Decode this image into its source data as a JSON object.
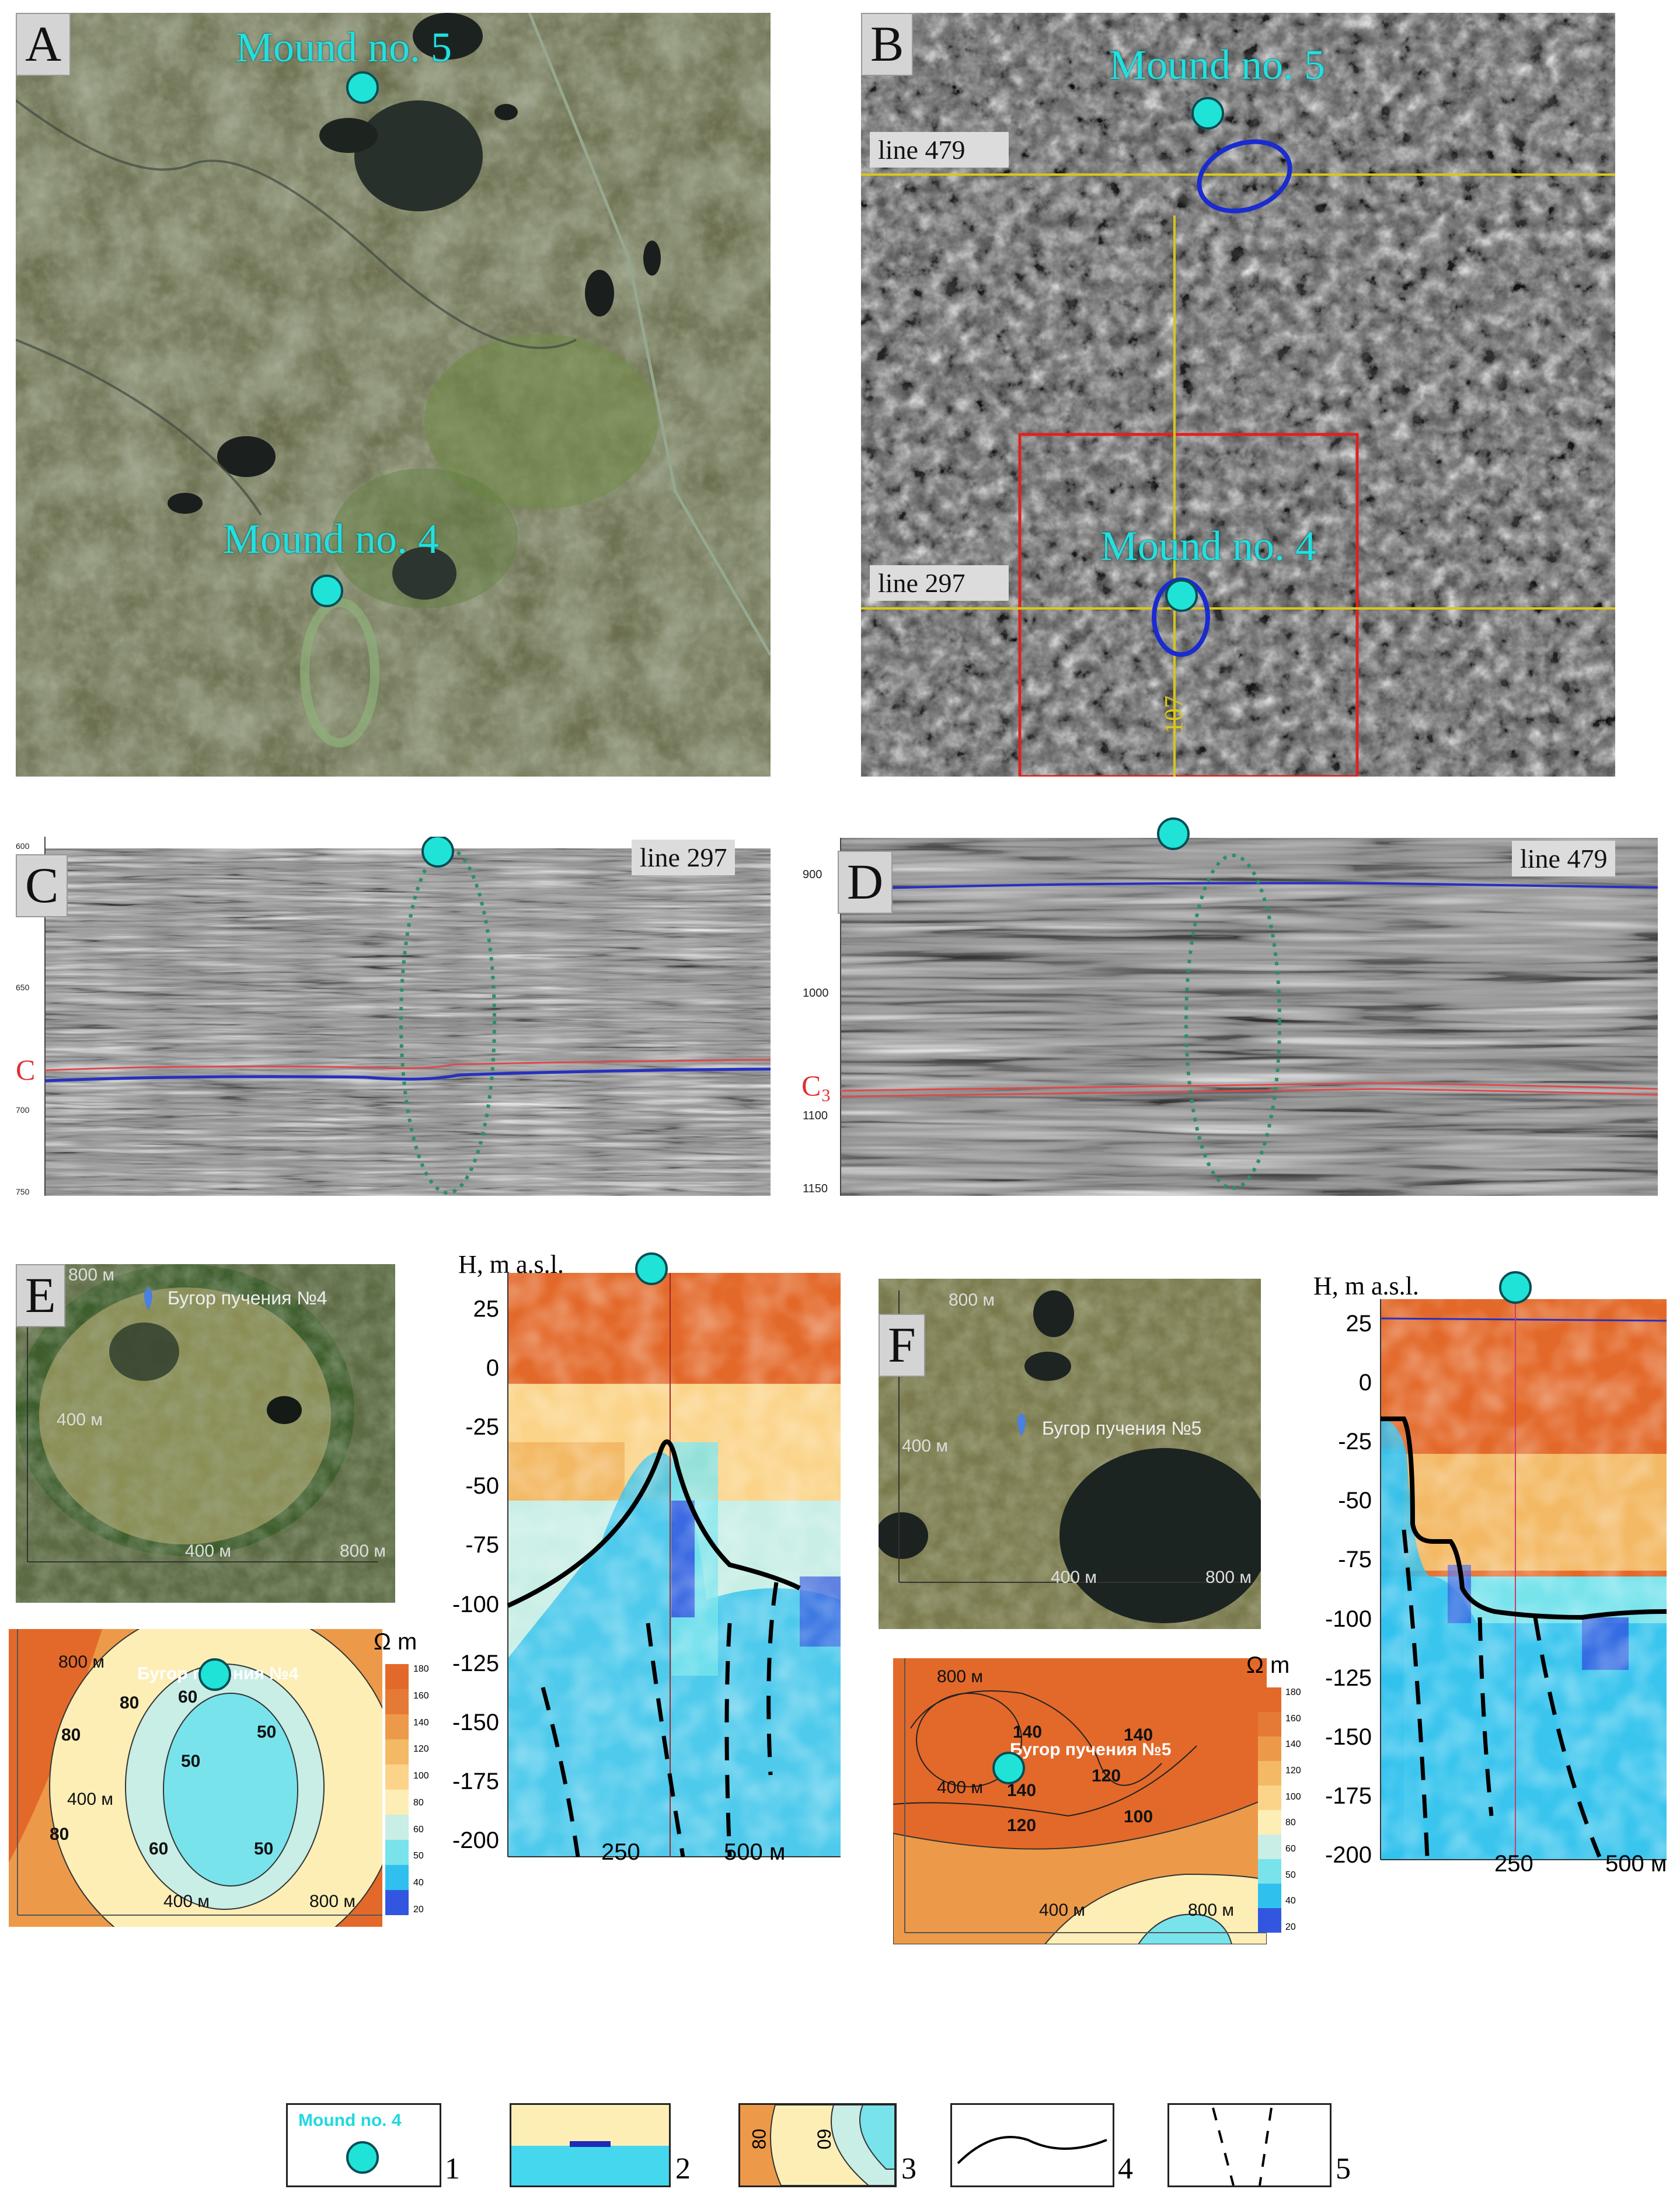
{
  "panels": {
    "a": {
      "label": "A",
      "mound5": "Mound no. 5",
      "mound4": "Mound no. 4"
    },
    "b": {
      "label": "B",
      "mound5": "Mound no. 5",
      "mound4": "Mound no. 4",
      "line479": "line 479",
      "line297": "line 297",
      "line107": "107"
    },
    "c": {
      "label": "C",
      "line": "line 297",
      "horizon": "C",
      "ticks": [
        "600",
        "650",
        "700",
        "750"
      ]
    },
    "d": {
      "label": "D",
      "line": "line 479",
      "horizon": "C₃",
      "ticks": [
        "900",
        "1000",
        "1100",
        "1150"
      ]
    },
    "e": {
      "label": "E",
      "map_name": "Бугор пучения №4",
      "map_ticks": [
        "800 м",
        "400 м",
        "400 м",
        "800 м"
      ],
      "contour": {
        "ticks_y": [
          "800 м",
          "400 м"
        ],
        "ticks_x": [
          "400 м",
          "800 м"
        ],
        "place": "Бугор пучения №4",
        "isolines": [
          "80",
          "80",
          "60",
          "50",
          "50",
          "60",
          "50",
          "80"
        ]
      },
      "section": {
        "ylabel": "H, m a.s.l.",
        "yticks": [
          "25",
          "0",
          "-25",
          "-50",
          "-75",
          "-100",
          "-125",
          "-150",
          "-175",
          "-200"
        ],
        "xticks": [
          "250",
          "500 м"
        ]
      }
    },
    "f": {
      "label": "F",
      "map_name": "Бугор пучения №5",
      "map_ticks": [
        "800 м",
        "400 м",
        "400 м",
        "800 м"
      ],
      "contour": {
        "ticks_y": [
          "800 м",
          "400 м"
        ],
        "ticks_x": [
          "400 м",
          "800 м"
        ],
        "place": "Бугор пучения №5",
        "isolines": [
          "140",
          "140",
          "140",
          "120",
          "120",
          "100"
        ]
      },
      "section": {
        "ylabel": "H, m a.s.l.",
        "yticks": [
          "25",
          "0",
          "-25",
          "-50",
          "-75",
          "-100",
          "-125",
          "-150",
          "-175",
          "-200"
        ],
        "xticks": [
          "250",
          "500 м"
        ]
      }
    }
  },
  "colorbar": {
    "unit": "Ω m",
    "ticks": [
      "180",
      "160",
      "140",
      "120",
      "100",
      "80",
      "60",
      "50",
      "40",
      "20"
    ],
    "colors": [
      "#e3692a",
      "#e57a36",
      "#ec9a4a",
      "#f3b964",
      "#fbd48a",
      "#fdeeb6",
      "#c8eee6",
      "#79e3ec",
      "#2fc0ee",
      "#3356e0"
    ]
  },
  "legend": {
    "items": [
      {
        "num": "1",
        "text": "Mound no. 4"
      },
      {
        "num": "2"
      },
      {
        "num": "3",
        "iso1": "80",
        "iso2": "60"
      },
      {
        "num": "4"
      },
      {
        "num": "5"
      }
    ]
  }
}
